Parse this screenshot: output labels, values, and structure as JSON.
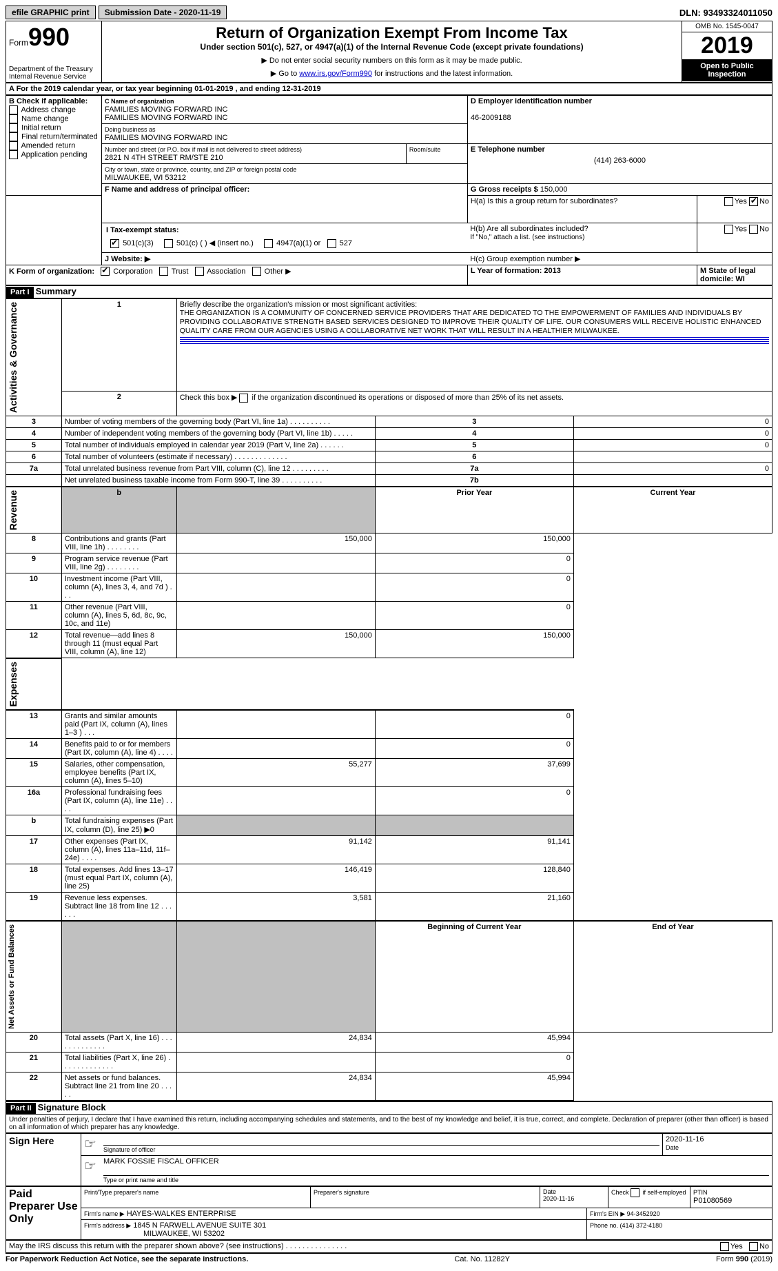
{
  "topbar": {
    "efile": "efile GRAPHIC print",
    "submission": "Submission Date - 2020-11-19",
    "dln_label": "DLN:",
    "dln": "93493324011050"
  },
  "header": {
    "form_word": "Form",
    "form_no": "990",
    "dept1": "Department of the Treasury",
    "dept2": "Internal Revenue Service",
    "title": "Return of Organization Exempt From Income Tax",
    "subtitle": "Under section 501(c), 527, or 4947(a)(1) of the Internal Revenue Code (except private foundations)",
    "note1": "▶ Do not enter social security numbers on this form as it may be made public.",
    "note2_pre": "▶ Go to ",
    "note2_link": "www.irs.gov/Form990",
    "note2_post": " for instructions and the latest information.",
    "omb": "OMB No. 1545-0047",
    "year": "2019",
    "inspection": "Open to Public Inspection"
  },
  "lineA": "A  For the 2019 calendar year, or tax year beginning 01-01-2019    , and ending 12-31-2019",
  "boxB": {
    "title": "B Check if applicable:",
    "items": [
      "Address change",
      "Name change",
      "Initial return",
      "Final return/terminated",
      "Amended return",
      "Application pending"
    ]
  },
  "boxC": {
    "label": "C Name of organization",
    "name1": "FAMILIES MOVING FORWARD INC",
    "name2": "FAMILIES MOVING FORWARD INC",
    "dba_label": "Doing business as",
    "dba": "FAMILIES MOVING FORWARD INC",
    "addr_label": "Number and street (or P.O. box if mail is not delivered to street address)",
    "addr": "2821 N 4TH STREET RM/STE 210",
    "room_label": "Room/suite",
    "city_label": "City or town, state or province, country, and ZIP or foreign postal code",
    "city": "MILWAUKEE, WI  53212"
  },
  "boxD": {
    "label": "D Employer identification number",
    "val": "46-2009188"
  },
  "boxE": {
    "label": "E Telephone number",
    "val": "(414) 263-6000"
  },
  "boxG": {
    "label": "G Gross receipts $",
    "val": "150,000"
  },
  "boxF": {
    "label": "F Name and address of principal officer:"
  },
  "boxH": {
    "a": "H(a)  Is this a group return for subordinates?",
    "b": "H(b)  Are all subordinates included?",
    "b_note": "If \"No,\" attach a list. (see instructions)",
    "c": "H(c)  Group exemption number ▶",
    "yes": "Yes",
    "no": "No"
  },
  "boxI": {
    "label": "I    Tax-exempt status:",
    "o1": "501(c)(3)",
    "o2": "501(c) (   ) ◀ (insert no.)",
    "o3": "4947(a)(1) or",
    "o4": "527"
  },
  "boxJ": "J   Website: ▶",
  "boxK": {
    "label": "K Form of organization:",
    "o1": "Corporation",
    "o2": "Trust",
    "o3": "Association",
    "o4": "Other ▶"
  },
  "boxL": "L Year of formation: 2013",
  "boxM": "M State of legal domicile: WI",
  "part1": {
    "hdr": "Part I",
    "title": "Summary",
    "q1": "Briefly describe the organization's mission or most significant activities:",
    "mission": "THE ORGANIZATION IS A COMMUNITY OF CONCERNED SERVICE PROVIDERS THAT ARE DEDICATED TO THE EMPOWERMENT OF FAMILIES AND INDIVIDUALS BY PROVIDING COLLABORATIVE STRENGTH BASED SERVICES DESIGNED TO IMPROVE THEIR QUALITY OF LIFE. OUR CONSUMERS WILL RECEIVE HOLISTIC ENHANCED QUALITY CARE FROM OUR AGENCIES USING A COLLABORATIVE NET WORK THAT WILL RESULT IN A HEALTHIER MILWAUKEE.",
    "q2": "Check this box ▶      if the organization discontinued its operations or disposed of more than 25% of its net assets.",
    "vlabel_gov": "Activities & Governance",
    "vlabel_rev": "Revenue",
    "vlabel_exp": "Expenses",
    "vlabel_net": "Net Assets or Fund Balances",
    "prior": "Prior Year",
    "current": "Current Year",
    "boy": "Beginning of Current Year",
    "eoy": "End of Year",
    "rows_gov": [
      {
        "n": "3",
        "t": "Number of voting members of the governing body (Part VI, line 1a)   .    .    .    .    .    .    .    .    .    .",
        "box": "3",
        "v": "0"
      },
      {
        "n": "4",
        "t": "Number of independent voting members of the governing body (Part VI, line 1b)    .    .    .    .    .",
        "box": "4",
        "v": "0"
      },
      {
        "n": "5",
        "t": "Total number of individuals employed in calendar year 2019 (Part V, line 2a)    .    .    .    .    .    .",
        "box": "5",
        "v": "0"
      },
      {
        "n": "6",
        "t": "Total number of volunteers (estimate if necessary)    .    .    .    .    .    .    .    .    .    .    .    .    .",
        "box": "6",
        "v": ""
      },
      {
        "n": "7a",
        "t": "Total unrelated business revenue from Part VIII, column (C), line 12    .    .    .    .    .    .    .    .    .",
        "box": "7a",
        "v": "0"
      },
      {
        "n": "",
        "t": "Net unrelated business taxable income from Form 990-T, line 39    .    .    .    .    .    .    .    .    .    .",
        "box": "7b",
        "v": ""
      }
    ],
    "rows_rev": [
      {
        "n": "8",
        "t": "Contributions and grants (Part VIII, line 1h)    .    .    .    .    .    .    .    .",
        "p": "150,000",
        "c": "150,000"
      },
      {
        "n": "9",
        "t": "Program service revenue (Part VIII, line 2g)    .    .    .    .    .    .    .    .",
        "p": "",
        "c": "0"
      },
      {
        "n": "10",
        "t": "Investment income (Part VIII, column (A), lines 3, 4, and 7d )    .    .    .",
        "p": "",
        "c": "0"
      },
      {
        "n": "11",
        "t": "Other revenue (Part VIII, column (A), lines 5, 6d, 8c, 9c, 10c, and 11e)",
        "p": "",
        "c": "0"
      },
      {
        "n": "12",
        "t": "Total revenue—add lines 8 through 11 (must equal Part VIII, column (A), line 12)",
        "p": "150,000",
        "c": "150,000"
      }
    ],
    "rows_exp": [
      {
        "n": "13",
        "t": "Grants and similar amounts paid (Part IX, column (A), lines 1–3 )    .    .    .",
        "p": "",
        "c": "0"
      },
      {
        "n": "14",
        "t": "Benefits paid to or for members (Part IX, column (A), line 4)    .    .    .    .",
        "p": "",
        "c": "0"
      },
      {
        "n": "15",
        "t": "Salaries, other compensation, employee benefits (Part IX, column (A), lines 5–10)",
        "p": "55,277",
        "c": "37,699"
      },
      {
        "n": "16a",
        "t": "Professional fundraising fees (Part IX, column (A), line 11e)    .    .    .    .",
        "p": "",
        "c": "0"
      },
      {
        "n": "b",
        "t": "Total fundraising expenses (Part IX, column (D), line 25) ▶0",
        "p": "GRAY",
        "c": "GRAY"
      },
      {
        "n": "17",
        "t": "Other expenses (Part IX, column (A), lines 11a–11d, 11f–24e)    .    .    .    .",
        "p": "91,142",
        "c": "91,141"
      },
      {
        "n": "18",
        "t": "Total expenses. Add lines 13–17 (must equal Part IX, column (A), line 25)",
        "p": "146,419",
        "c": "128,840"
      },
      {
        "n": "19",
        "t": "Revenue less expenses. Subtract line 18 from line 12    .    .    .    .    .    .",
        "p": "3,581",
        "c": "21,160"
      }
    ],
    "rows_net": [
      {
        "n": "20",
        "t": "Total assets (Part X, line 16)    .    .    .    .    .    .    .    .    .    .    .    .    .",
        "p": "24,834",
        "c": "45,994"
      },
      {
        "n": "21",
        "t": "Total liabilities (Part X, line 26)    .    .    .    .    .    .    .    .    .    .    .    .    .",
        "p": "",
        "c": "0"
      },
      {
        "n": "22",
        "t": "Net assets or fund balances. Subtract line 21 from line 20    .    .    .    .    .",
        "p": "24,834",
        "c": "45,994"
      }
    ]
  },
  "part2": {
    "hdr": "Part II",
    "title": "Signature Block",
    "decl": "Under penalties of perjury, I declare that I have examined this return, including accompanying schedules and statements, and to the best of my knowledge and belief, it is true, correct, and complete. Declaration of preparer (other than officer) is based on all information of which preparer has any knowledge.",
    "sign_here": "Sign Here",
    "sig_officer": "Signature of officer",
    "sig_date": "2020-11-16",
    "sig_datelabel": "Date",
    "officer_name": "MARK FOSSIE  FISCAL OFFICER",
    "officer_label": "Type or print name and title",
    "paid": "Paid Preparer Use Only",
    "prep_name_label": "Print/Type preparer's name",
    "prep_sig_label": "Preparer's signature",
    "prep_date": "Date\n2020-11-16",
    "prep_check": "Check        if self-employed",
    "ptin_label": "PTIN",
    "ptin": "P01080569",
    "firm_name_label": "Firm's name    ▶",
    "firm_name": "HAYES-WALKES ENTERPRISE",
    "firm_ein": "Firm's EIN ▶ 94-3452920",
    "firm_addr_label": "Firm's address ▶",
    "firm_addr1": "1845 N FARWELL AVENUE SUITE 301",
    "firm_addr2": "MILWAUKEE, WI  53202",
    "firm_phone": "Phone no. (414) 372-4180",
    "discuss": "May the IRS discuss this return with the preparer shown above? (see instructions)    .    .    .    .    .    .    .    .    .    .    .    .    .    .    .",
    "yes": "Yes",
    "no": "No"
  },
  "footer": {
    "left": "For Paperwork Reduction Act Notice, see the separate instructions.",
    "mid": "Cat. No. 11282Y",
    "right_pre": "Form ",
    "right_bold": "990",
    "right_post": " (2019)"
  }
}
